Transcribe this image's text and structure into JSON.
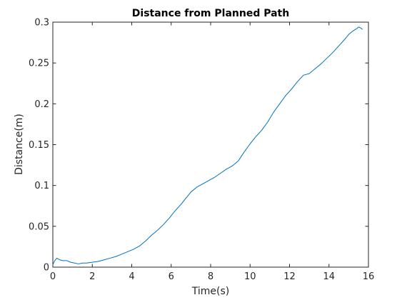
{
  "chart_data": {
    "type": "line",
    "title": "Distance from Planned Path",
    "xlabel": "Time(s)",
    "ylabel": "Distance(m)",
    "xlim": [
      0,
      16
    ],
    "ylim": [
      0,
      0.3
    ],
    "xticks": [
      0,
      2,
      4,
      6,
      8,
      10,
      12,
      14,
      16
    ],
    "xtick_labels": [
      "0",
      "2",
      "4",
      "6",
      "8",
      "10",
      "12",
      "14",
      "16"
    ],
    "yticks": [
      0,
      0.05,
      0.1,
      0.15,
      0.2,
      0.25,
      0.3
    ],
    "ytick_labels": [
      "0",
      "0.05",
      "0.1",
      "0.15",
      "0.2",
      "0.25",
      "0.3"
    ],
    "grid": false,
    "legend": "none",
    "series": [
      {
        "color": "#0072bd",
        "x": [
          0,
          0.1,
          0.2,
          0.35,
          0.5,
          0.7,
          0.9,
          1.1,
          1.3,
          1.5,
          1.7,
          2.0,
          2.3,
          2.6,
          2.9,
          3.2,
          3.5,
          3.8,
          4.1,
          4.4,
          4.7,
          5.0,
          5.3,
          5.6,
          5.9,
          6.2,
          6.5,
          6.8,
          7.0,
          7.3,
          7.6,
          7.9,
          8.2,
          8.5,
          8.8,
          9.1,
          9.4,
          9.7,
          10.0,
          10.3,
          10.6,
          10.9,
          11.2,
          11.5,
          11.8,
          12.1,
          12.4,
          12.7,
          13.0,
          13.3,
          13.6,
          13.9,
          14.2,
          14.5,
          14.8,
          15.0,
          15.2,
          15.4,
          15.5,
          15.6,
          15.7
        ],
        "y": [
          0.003,
          0.008,
          0.011,
          0.009,
          0.008,
          0.008,
          0.006,
          0.005,
          0.004,
          0.005,
          0.005,
          0.006,
          0.007,
          0.009,
          0.011,
          0.013,
          0.016,
          0.019,
          0.022,
          0.026,
          0.032,
          0.039,
          0.045,
          0.052,
          0.06,
          0.069,
          0.077,
          0.086,
          0.092,
          0.098,
          0.102,
          0.106,
          0.11,
          0.115,
          0.12,
          0.124,
          0.13,
          0.141,
          0.151,
          0.16,
          0.168,
          0.178,
          0.19,
          0.2,
          0.21,
          0.218,
          0.227,
          0.235,
          0.237,
          0.243,
          0.249,
          0.256,
          0.263,
          0.271,
          0.279,
          0.285,
          0.289,
          0.292,
          0.294,
          0.293,
          0.291
        ]
      }
    ]
  }
}
